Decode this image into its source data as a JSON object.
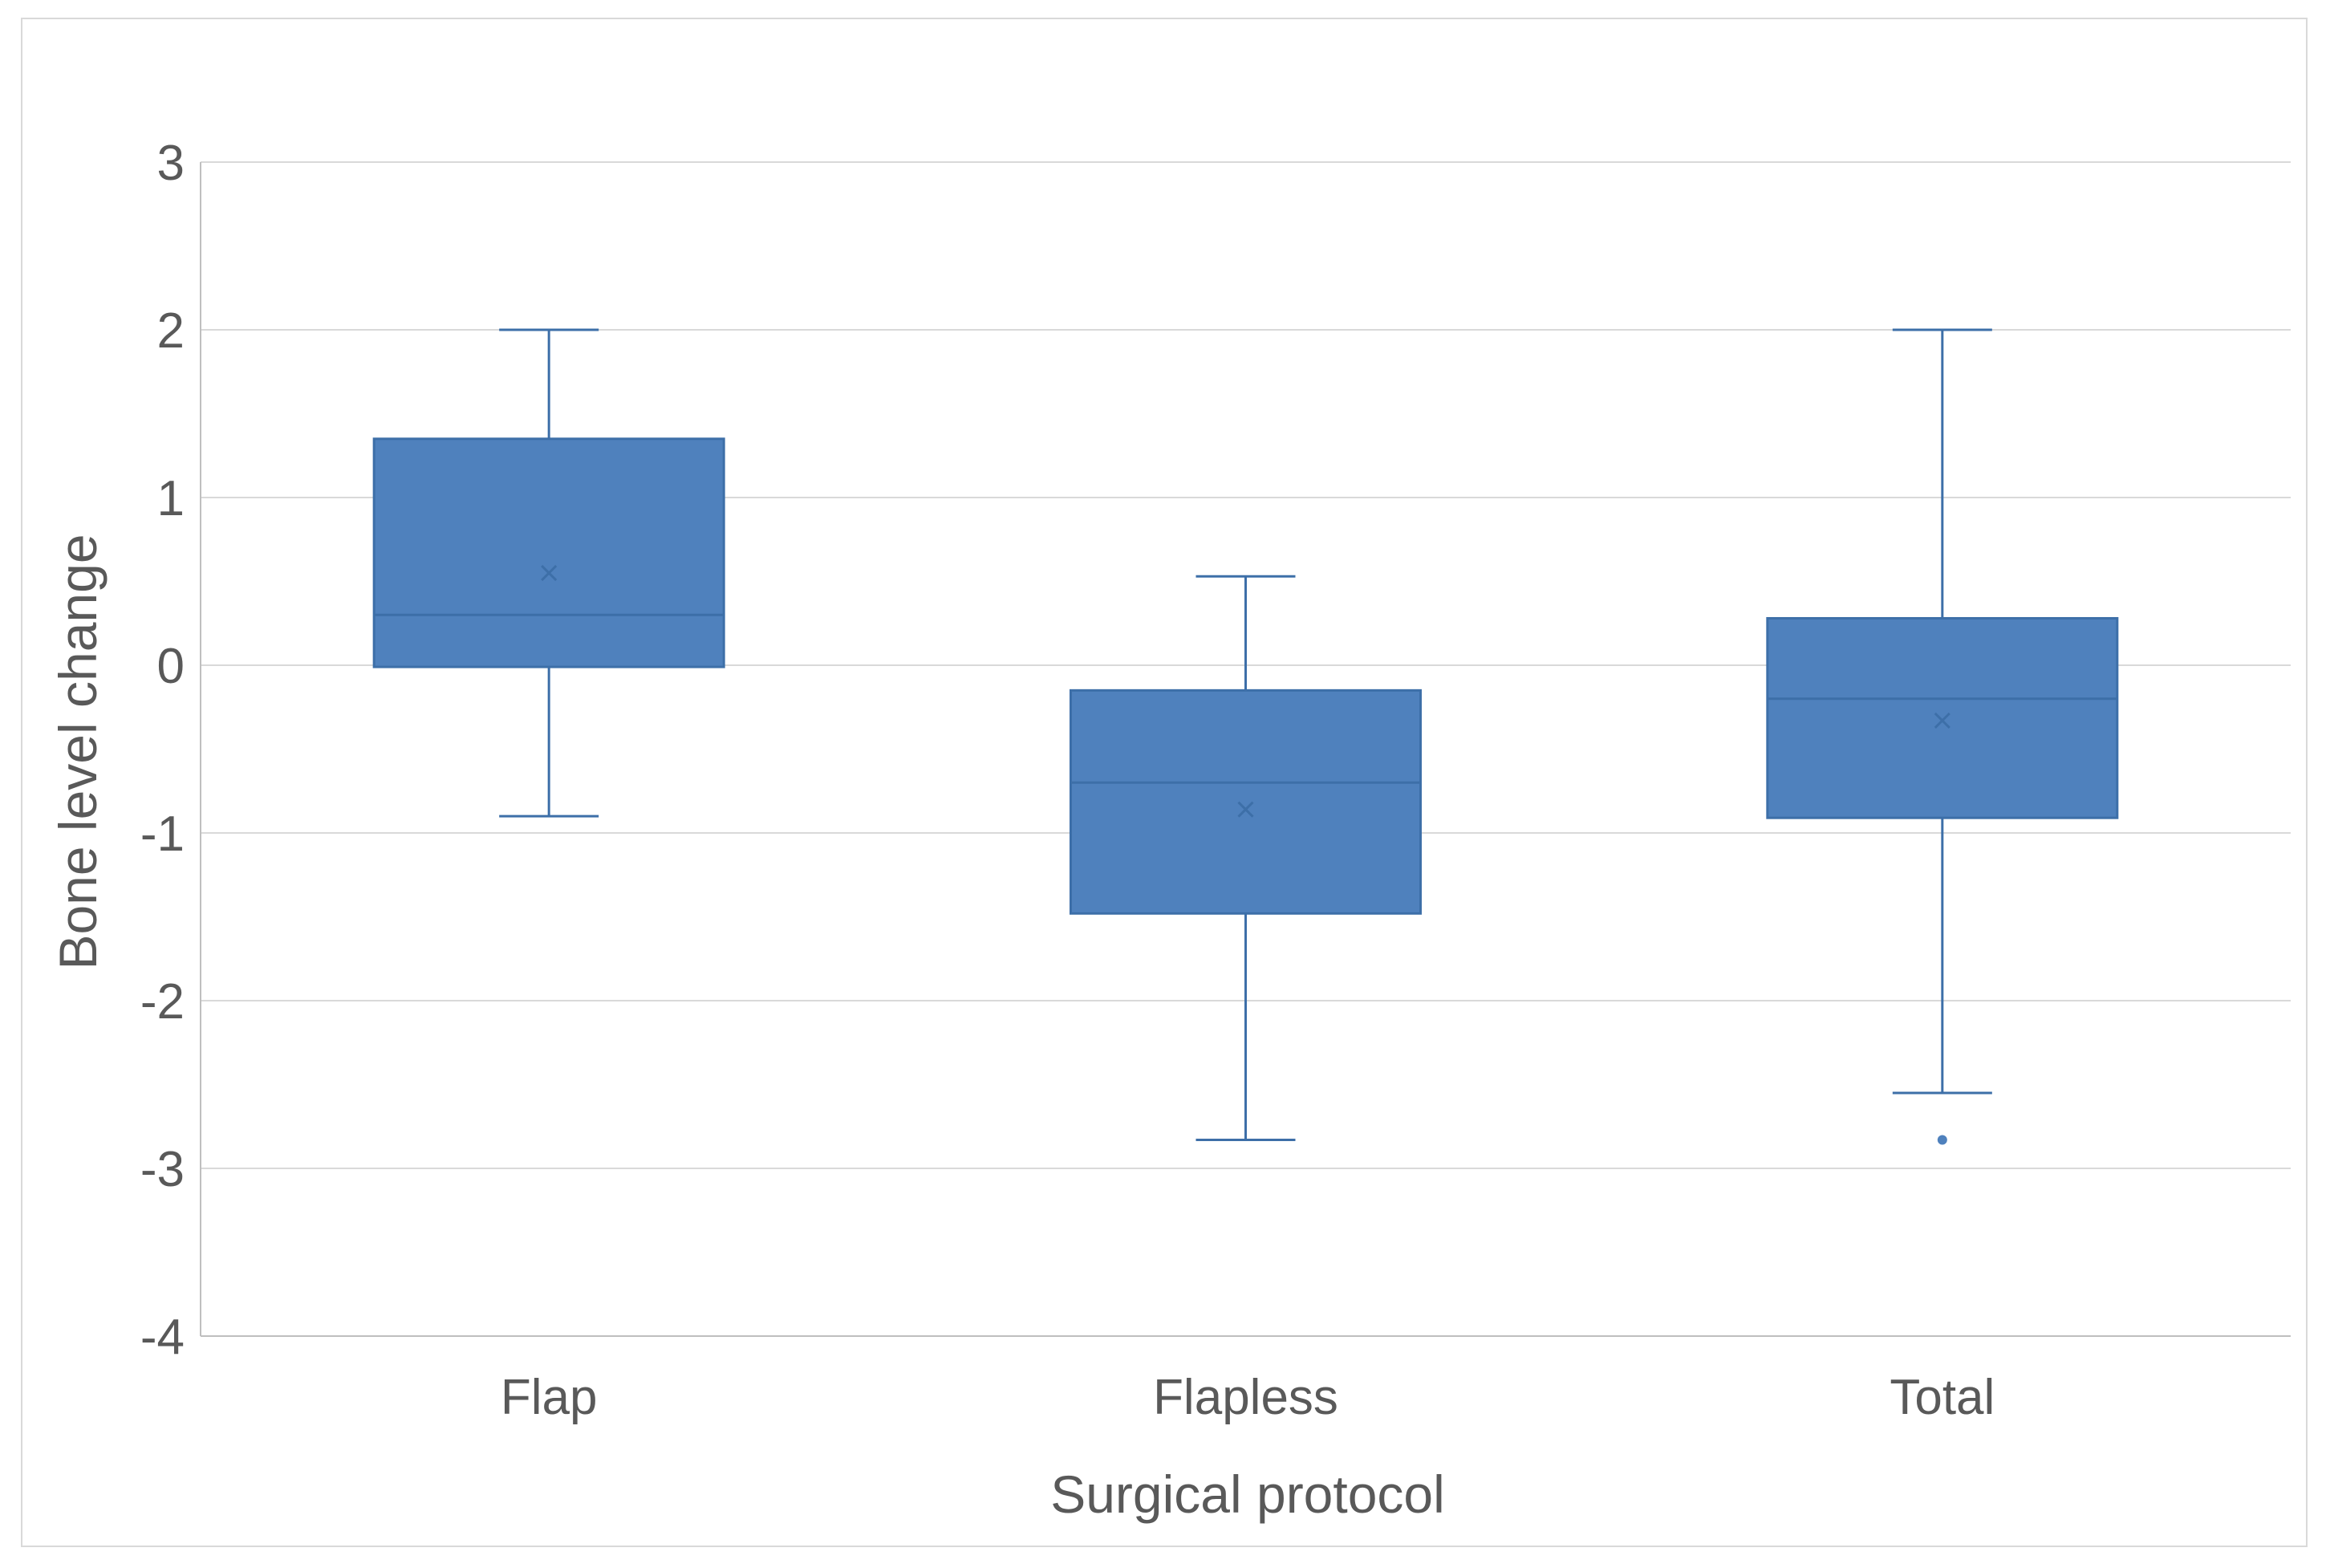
{
  "chart_data": {
    "type": "box",
    "title": "",
    "xlabel": "Surgical protocol",
    "ylabel": "Bone level change",
    "ylim": [
      -4,
      3
    ],
    "yticks": [
      3,
      2,
      1,
      0,
      -1,
      -2,
      -3,
      -4
    ],
    "grid": true,
    "colors": {
      "box_fill": "#4f81bd",
      "box_stroke": "#3d6fa8",
      "grid": "#d9d9d9",
      "axis": "#bfbfbf",
      "text": "#595959"
    },
    "categories": [
      "Flap",
      "Flapless",
      "Total"
    ],
    "boxes": [
      {
        "category": "Flap",
        "min": -0.9,
        "q1": -0.01,
        "median": 0.3,
        "q3": 1.35,
        "max": 2.0,
        "mean": 0.55,
        "outliers": []
      },
      {
        "category": "Flapless",
        "min": -2.83,
        "q1": -1.48,
        "median": -0.7,
        "q3": -0.15,
        "max": 0.53,
        "mean": -0.86,
        "outliers": []
      },
      {
        "category": "Total",
        "min": -2.55,
        "q1": -0.91,
        "median": -0.2,
        "q3": 0.28,
        "max": 2.0,
        "mean": -0.33,
        "outliers": [
          -2.83
        ]
      }
    ]
  }
}
